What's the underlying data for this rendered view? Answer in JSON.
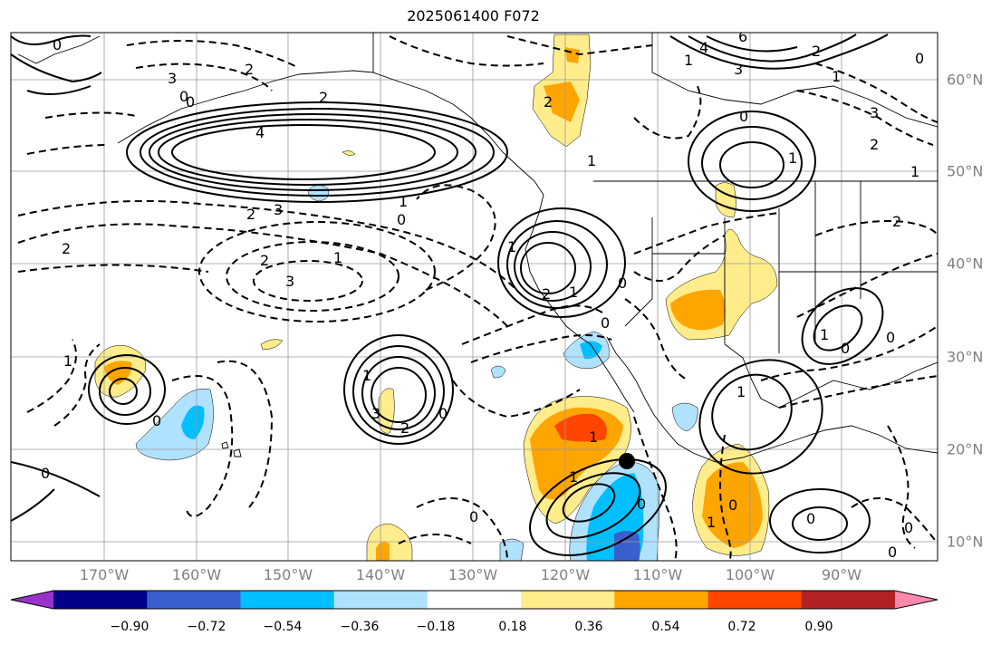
{
  "title": "2025061400 F072",
  "lon_labels": [
    "170°W",
    "160°W",
    "150°W",
    "140°W",
    "130°W",
    "120°W",
    "110°W",
    "100°W",
    "90°W"
  ],
  "lat_labels": [
    "60°N",
    "50°N",
    "40°N",
    "30°N",
    "20°N",
    "10°N"
  ],
  "colorbar": {
    "colors": [
      "#9932cc",
      "#00008b",
      "#3a5fcd",
      "#00bfff",
      "#b0e2ff",
      "#ffffff",
      "#ffec8b",
      "#ffa500",
      "#ff4500",
      "#b22222",
      "#ff89ac"
    ],
    "ticks": [
      "−0.90",
      "−0.72",
      "−0.54",
      "−0.36",
      "−0.18",
      "0.18",
      "0.36",
      "0.54",
      "0.72",
      "0.90"
    ]
  },
  "contour_labels": [
    "0",
    "2",
    "3",
    "4",
    "2",
    "3",
    "0",
    "2",
    "3",
    "2",
    "1",
    "0",
    "1",
    "1",
    "0",
    "1",
    "0",
    "3",
    "2",
    "0",
    "1",
    "2",
    "1",
    "0",
    "1",
    "0",
    "0",
    "4",
    "6",
    "3",
    "1",
    "0",
    "2",
    "1",
    "2",
    "3",
    "2",
    "1",
    "0",
    "1",
    "1",
    "2",
    "1",
    "0",
    "0",
    "1",
    "0",
    "0",
    "0",
    "0",
    "0",
    "1",
    "2",
    "0",
    "1"
  ],
  "marker": "black-dot"
}
